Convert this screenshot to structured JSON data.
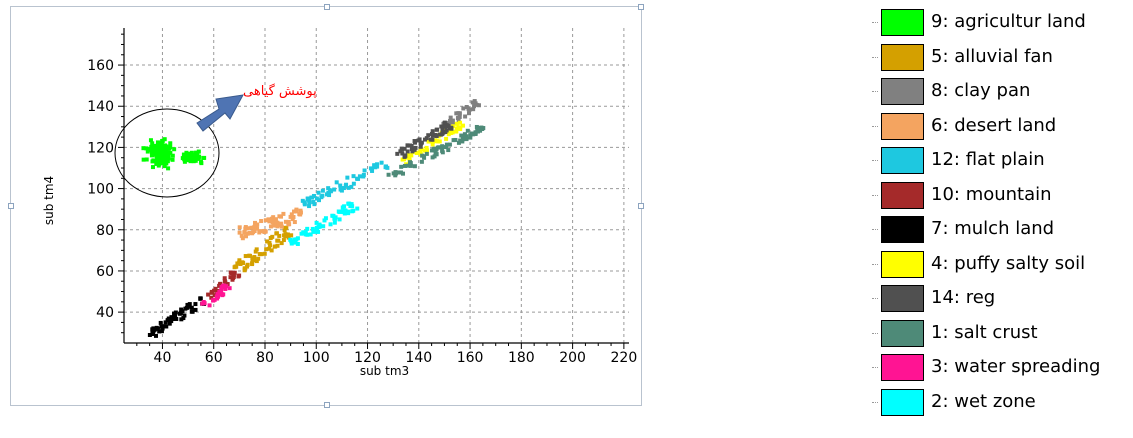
{
  "chart_data": {
    "type": "scatter",
    "xlabel": "sub tm3",
    "ylabel": "sub tm4",
    "xlim": [
      25,
      222
    ],
    "ylim": [
      25,
      178
    ],
    "x_ticks": [
      40,
      60,
      80,
      100,
      120,
      140,
      160,
      180,
      200,
      220
    ],
    "y_ticks": [
      40,
      60,
      80,
      100,
      120,
      140,
      160
    ],
    "grid": true,
    "annotation": {
      "text": "پوشش گیاهی",
      "color": "#ff0000",
      "marker": "ellipse around vegetation cluster with arrow"
    },
    "series": [
      {
        "name": "9: agricultur land",
        "color": "#00ff00",
        "shape": "cluster",
        "center": [
          39,
          117
        ],
        "spread": [
          6,
          7
        ],
        "n": 140
      },
      {
        "name": "9: agricultur land",
        "color": "#00ff00",
        "shape": "cluster",
        "center": [
          52,
          115
        ],
        "spread": [
          5,
          3
        ],
        "n": 50
      },
      {
        "name": "5: alluvial fan",
        "color": "#d4a000",
        "shape": "band",
        "from": [
          68,
          60
        ],
        "to": [
          90,
          80
        ],
        "width": 2.5,
        "n": 60
      },
      {
        "name": "8: clay pan",
        "color": "#808080",
        "shape": "band",
        "from": [
          150,
          130
        ],
        "to": [
          163,
          142
        ],
        "width": 1.8,
        "n": 30
      },
      {
        "name": "6: desert land",
        "color": "#f4a460",
        "shape": "band",
        "from": [
          70,
          78
        ],
        "to": [
          95,
          88
        ],
        "width": 3,
        "n": 70
      },
      {
        "name": "12: flat plain",
        "color": "#1ec8e0",
        "shape": "band",
        "from": [
          95,
          92
        ],
        "to": [
          127,
          112
        ],
        "width": 2.5,
        "n": 60
      },
      {
        "name": "10: mountain",
        "color": "#a52a2a",
        "shape": "band",
        "from": [
          58,
          48
        ],
        "to": [
          70,
          60
        ],
        "width": 2,
        "n": 30
      },
      {
        "name": "7: mulch land",
        "color": "#000000",
        "shape": "band",
        "from": [
          35,
          29
        ],
        "to": [
          56,
          46
        ],
        "width": 2,
        "n": 60
      },
      {
        "name": "4: puffy salty soil",
        "color": "#ffff00",
        "shape": "band",
        "from": [
          134,
          113
        ],
        "to": [
          158,
          132
        ],
        "width": 1.8,
        "n": 50
      },
      {
        "name": "14: reg",
        "color": "#505050",
        "shape": "band",
        "from": [
          132,
          116
        ],
        "to": [
          152,
          131
        ],
        "width": 2,
        "n": 55
      },
      {
        "name": "1: salt crust",
        "color": "#4e8a78",
        "shape": "band",
        "from": [
          128,
          105
        ],
        "to": [
          165,
          130
        ],
        "width": 1.8,
        "n": 70
      },
      {
        "name": "3: water spreading",
        "color": "#ff1493",
        "shape": "band",
        "from": [
          56,
          43
        ],
        "to": [
          66,
          53
        ],
        "width": 1.8,
        "n": 25
      },
      {
        "name": "2: wet zone",
        "color": "#00ffff",
        "shape": "band",
        "from": [
          90,
          73
        ],
        "to": [
          115,
          92
        ],
        "width": 2.2,
        "n": 60
      }
    ]
  },
  "legend": {
    "items": [
      {
        "label": "9: agricultur land",
        "color": "#00ff00"
      },
      {
        "label": "5: alluvial fan",
        "color": "#d4a000"
      },
      {
        "label": "8: clay pan",
        "color": "#808080"
      },
      {
        "label": "6: desert land",
        "color": "#f4a460"
      },
      {
        "label": "12: flat plain",
        "color": "#1ec8e0"
      },
      {
        "label": "10: mountain",
        "color": "#a52a2a"
      },
      {
        "label": "7: mulch land",
        "color": "#000000"
      },
      {
        "label": "4: puffy salty soil",
        "color": "#ffff00"
      },
      {
        "label": "14: reg",
        "color": "#505050"
      },
      {
        "label": "1: salt crust",
        "color": "#4e8a78"
      },
      {
        "label": "3: water spreading",
        "color": "#ff1493"
      },
      {
        "label": "2: wet zone",
        "color": "#00ffff"
      }
    ]
  }
}
